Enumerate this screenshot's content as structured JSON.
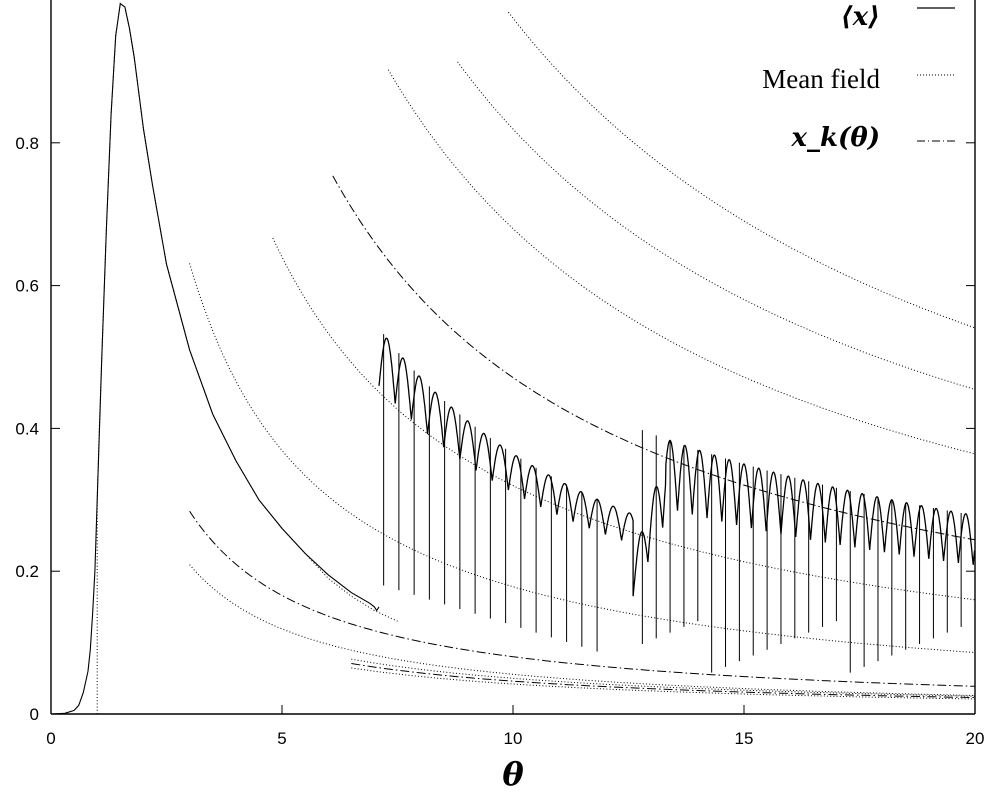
{
  "chart_data": {
    "type": "line",
    "xlabel": "θ",
    "ylabel": "",
    "xlim": [
      0,
      20
    ],
    "ylim": [
      0,
      1.0
    ],
    "x_ticks": [
      "0",
      "5",
      "10",
      "15",
      "20"
    ],
    "y_ticks": [
      "0",
      "0.2",
      "0.4",
      "0.6",
      "0.8"
    ],
    "grid": false,
    "legend_position": "top-right",
    "legend": [
      {
        "label": "⟨x⟩",
        "style": "solid"
      },
      {
        "label": "Mean field",
        "style": "dotted"
      },
      {
        "label": "x_k(θ)",
        "style": "dash-dot"
      }
    ],
    "series": [
      {
        "name": "⟨x⟩",
        "style": "solid",
        "x": [
          0,
          0.3,
          0.5,
          0.6,
          0.7,
          0.8,
          0.85,
          0.9,
          0.95,
          1.0,
          1.05,
          1.1,
          1.2,
          1.3,
          1.4,
          1.5,
          1.6,
          1.7,
          1.8,
          2.0,
          2.2,
          2.5,
          3.0,
          3.5,
          4.0,
          4.5,
          5.0,
          5.5,
          6.0,
          6.5,
          6.9,
          7.0,
          7.05,
          7.1
        ],
        "values": [
          0,
          0.001,
          0.005,
          0.012,
          0.03,
          0.06,
          0.09,
          0.14,
          0.2,
          0.3,
          0.4,
          0.5,
          0.68,
          0.84,
          0.95,
          0.995,
          0.99,
          0.96,
          0.92,
          0.82,
          0.74,
          0.63,
          0.51,
          0.42,
          0.355,
          0.3,
          0.26,
          0.225,
          0.195,
          0.17,
          0.155,
          0.15,
          0.145,
          0.15
        ]
      },
      {
        "name": "Mean field",
        "style": "dotted",
        "x": [
          1.0,
          1.0,
          1.05,
          1.1,
          1.2,
          1.3,
          1.4,
          1.5,
          1.6,
          1.7,
          1.8,
          2.0,
          2.2,
          2.5,
          3.0,
          3.5,
          4.0,
          4.5,
          5.0,
          5.5,
          6.0,
          6.5,
          7.0,
          7.5
        ],
        "values": [
          0,
          0.3,
          0.41,
          0.5,
          0.68,
          0.84,
          0.95,
          0.995,
          0.99,
          0.96,
          0.92,
          0.82,
          0.74,
          0.63,
          0.51,
          0.42,
          0.355,
          0.3,
          0.26,
          0.225,
          0.19,
          0.165,
          0.145,
          0.13
        ]
      }
    ]
  }
}
